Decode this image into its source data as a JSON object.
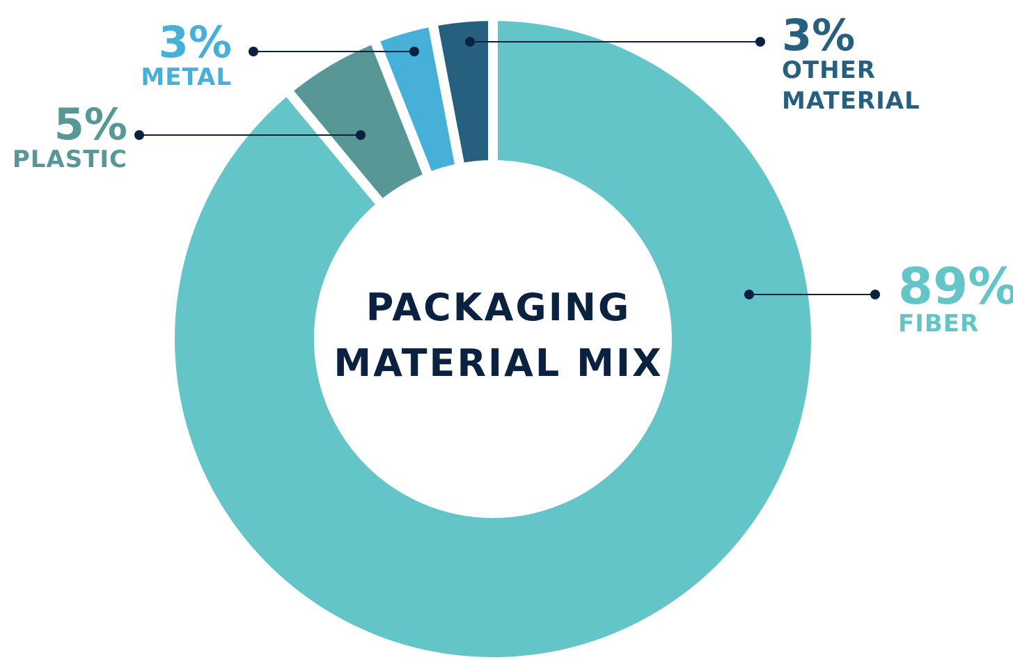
{
  "chart_data": {
    "type": "pie",
    "title_lines": [
      "PACKAGING",
      "MATERIAL MIX"
    ],
    "slices": [
      {
        "label_lines": [
          "FIBER"
        ],
        "value": 89,
        "display": "89%",
        "color": "#64c5c8"
      },
      {
        "label_lines": [
          "PLASTIC"
        ],
        "value": 5,
        "display": "5%",
        "color": "#579897"
      },
      {
        "label_lines": [
          "METAL"
        ],
        "value": 3,
        "display": "3%",
        "color": "#46b0d9"
      },
      {
        "label_lines": [
          "OTHER",
          "MATERIAL"
        ],
        "value": 3,
        "display": "3%",
        "color": "#275f7e"
      }
    ]
  },
  "colors": {
    "title": "#0a2240",
    "leader": "#0a2240",
    "background": "#ffffff"
  }
}
